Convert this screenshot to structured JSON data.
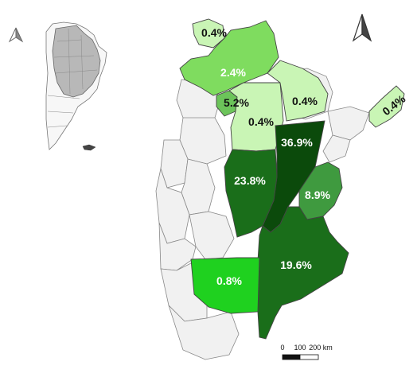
{
  "map": {
    "scale": {
      "ticks": [
        "0",
        "100",
        "200 km"
      ]
    },
    "north_arrows": [
      "north-arrow-inset",
      "north-arrow-main"
    ],
    "colors": {
      "darkest": "#0b4a0b",
      "dark": "#1a6e1a",
      "medium_dark": "#2f8a2f",
      "medium": "#3f9a3f",
      "bright": "#1fd11f",
      "light_green": "#7fdc5f",
      "pale": "#c9f5b5",
      "other_province": "#f0f0f0",
      "inset_highlight": "#b8b8b8"
    },
    "regions": [
      {
        "id": "jujuy",
        "label": "0.4%",
        "color": "#c9f5b5",
        "label_color": "dark"
      },
      {
        "id": "salta",
        "label": "2.4%",
        "color": "#7fdc5f",
        "label_color": "light"
      },
      {
        "id": "tucuman",
        "label": "5.2%",
        "color": "#6cc45a",
        "label_color": "dark"
      },
      {
        "id": "santiago",
        "label": "0.4%",
        "color": "#c9f5b5",
        "label_color": "dark"
      },
      {
        "id": "chaco",
        "label": "0.4%",
        "color": "#c9f5b5",
        "label_color": "dark"
      },
      {
        "id": "misiones",
        "label": "0.4%",
        "color": "#c9f5b5",
        "label_color": "dark"
      },
      {
        "id": "santa-fe",
        "label": "36.9%",
        "color": "#0b4a0b",
        "label_color": "light"
      },
      {
        "id": "cordoba",
        "label": "23.8%",
        "color": "#1a6e1a",
        "label_color": "light"
      },
      {
        "id": "entre-rios",
        "label": "8.9%",
        "color": "#3f9a3f",
        "label_color": "light"
      },
      {
        "id": "buenos-aires",
        "label": "19.6%",
        "color": "#1a6e1a",
        "label_color": "light"
      },
      {
        "id": "la-pampa",
        "label": "0.8%",
        "color": "#1fd11f",
        "label_color": "light"
      }
    ]
  }
}
